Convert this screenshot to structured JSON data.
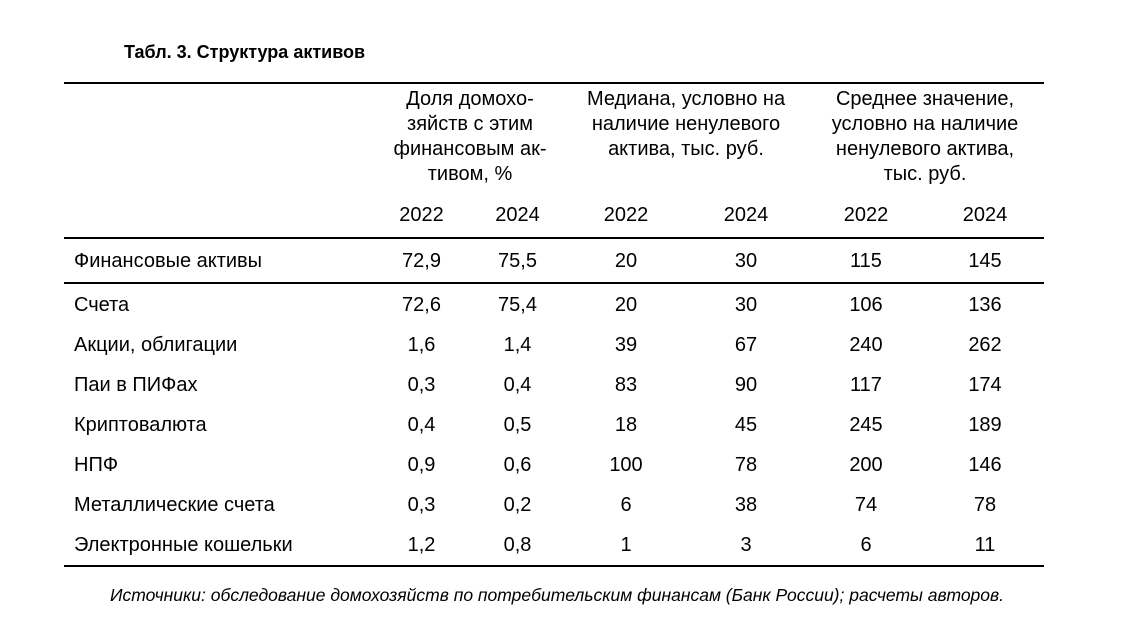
{
  "title": "Табл. 3. Структура активов",
  "headers": {
    "group1": "Доля домохо-\nзяйств с этим\nфинансовым ак-\nтивом, %",
    "group2": "Медиана, условно на\nналичие ненулевого\nактива, тыс. руб.",
    "group3": "Среднее значение,\nусловно на наличие\nненулевого актива,\nтыс. руб.",
    "years": [
      "2022",
      "2024",
      "2022",
      "2024",
      "2022",
      "2024"
    ]
  },
  "rows": [
    {
      "label": "Финансовые активы",
      "values": [
        "72,9",
        "75,5",
        "20",
        "30",
        "115",
        "145"
      ]
    },
    {
      "label": "Счета",
      "values": [
        "72,6",
        "75,4",
        "20",
        "30",
        "106",
        "136"
      ]
    },
    {
      "label": "Акции, облигации",
      "values": [
        "1,6",
        "1,4",
        "39",
        "67",
        "240",
        "262"
      ]
    },
    {
      "label": "Паи в ПИФах",
      "values": [
        "0,3",
        "0,4",
        "83",
        "90",
        "117",
        "174"
      ]
    },
    {
      "label": "Криптовалюта",
      "values": [
        "0,4",
        "0,5",
        "18",
        "45",
        "245",
        "189"
      ]
    },
    {
      "label": "НПФ",
      "values": [
        "0,9",
        "0,6",
        "100",
        "78",
        "200",
        "146"
      ]
    },
    {
      "label": "Металлические счета",
      "values": [
        "0,3",
        "0,2",
        "6",
        "38",
        "74",
        "78"
      ]
    },
    {
      "label": "Электронные кошельки",
      "values": [
        "1,2",
        "0,8",
        "1",
        "3",
        "6",
        "11"
      ]
    }
  ],
  "source": "Источники: обследование домохозяйств по потребительским финансам (Банк России); расчеты авторов."
}
